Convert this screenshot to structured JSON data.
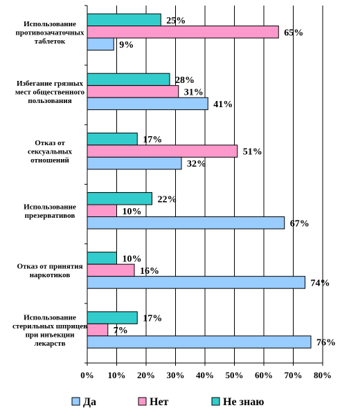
{
  "chart_data": {
    "type": "bar",
    "orientation": "horizontal",
    "categories": [
      [
        "Использование",
        "противозачаточных",
        "таблеток"
      ],
      [
        "Избегание грязных",
        "мест общественного",
        "пользования"
      ],
      [
        "Отказ от",
        "сексуальных",
        "отношений"
      ],
      [
        "Использование",
        "презервативов"
      ],
      [
        "Отказ от принятия",
        "наркотиков"
      ],
      [
        "Использование",
        "стерильных шприцев",
        "при инъекции",
        "лекарств"
      ]
    ],
    "series": [
      {
        "name": "Не знаю",
        "color": "#33cccc",
        "values": [
          25,
          28,
          17,
          22,
          10,
          17
        ],
        "labels": [
          "25%",
          "28%",
          "17%",
          "22%",
          "10%",
          "17%"
        ]
      },
      {
        "name": "Нет",
        "color": "#ff99cc",
        "values": [
          65,
          31,
          51,
          10,
          16,
          7
        ],
        "labels": [
          "65%",
          "31%",
          "51%",
          "10%",
          "16%",
          "7%"
        ]
      },
      {
        "name": "Да",
        "color": "#99ccff",
        "values": [
          9,
          41,
          32,
          67,
          74,
          76
        ],
        "labels": [
          "9%",
          "41%",
          "32%",
          "67%",
          "74%",
          "76%"
        ]
      }
    ],
    "legend_order": [
      "Да",
      "Нет",
      "Не знаю"
    ],
    "xlim": [
      0,
      80
    ],
    "xticks": [
      0,
      10,
      20,
      30,
      40,
      50,
      60,
      70,
      80
    ],
    "xtick_labels": [
      "0%",
      "10%",
      "20%",
      "30%",
      "40%",
      "50%",
      "60%",
      "70%",
      "80%"
    ],
    "grid": true,
    "legend_position": "bottom"
  }
}
